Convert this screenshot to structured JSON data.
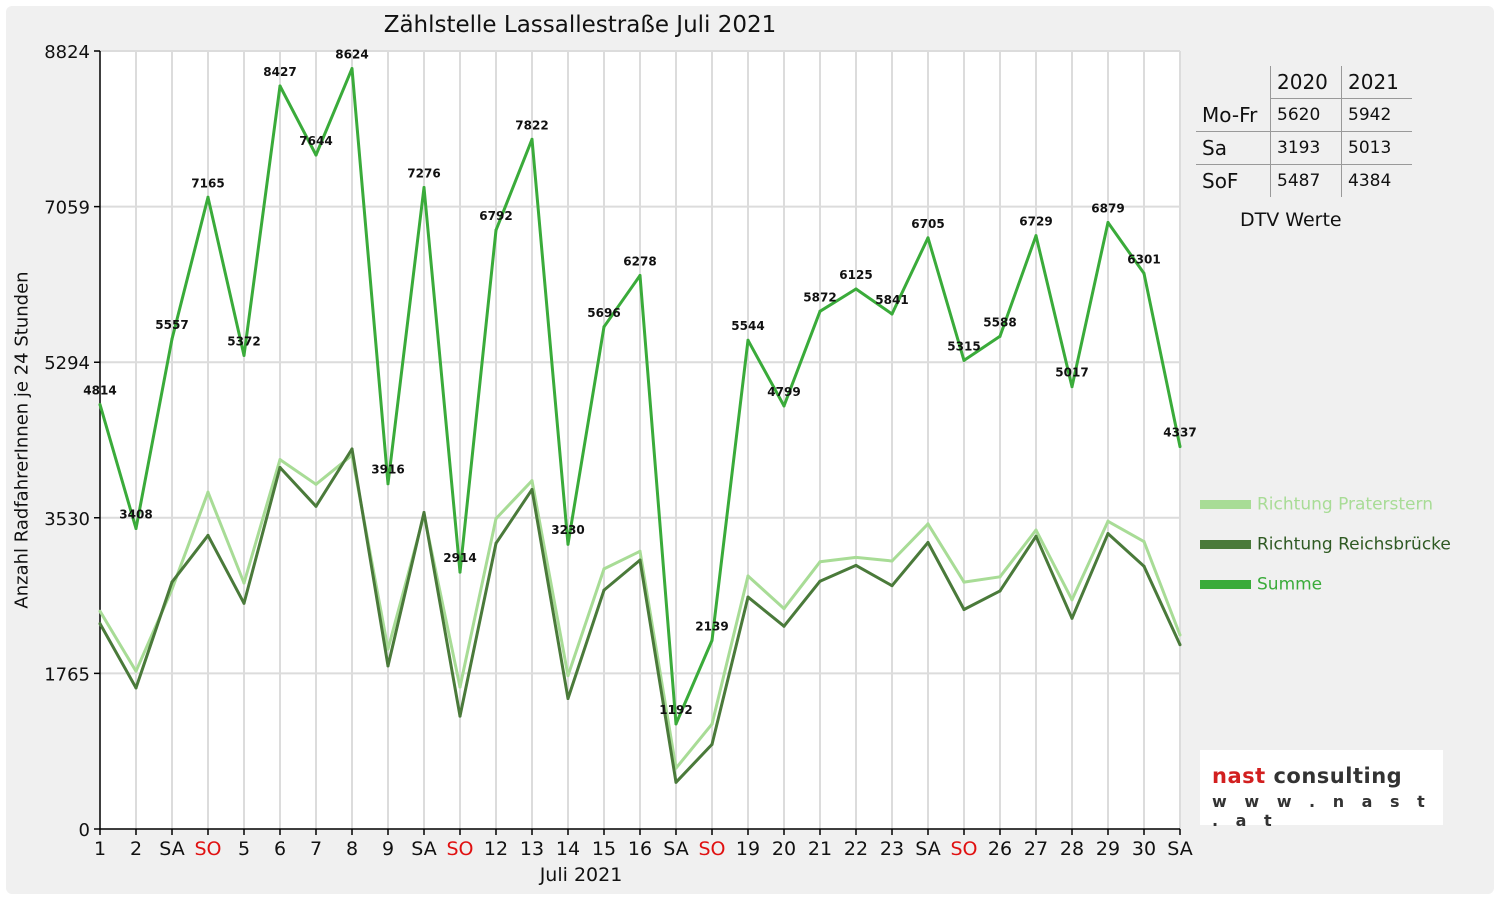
{
  "chart_data": {
    "type": "line",
    "title": "Zählstelle Lassallestraße Juli 2021",
    "xlabel": "Juli 2021",
    "ylabel": "Anzahl RadfahrerInnen je 24 Stunden",
    "ylim": [
      0,
      8824
    ],
    "yticks": [
      "0",
      "1765",
      "3530",
      "5294",
      "7059",
      "8824"
    ],
    "grid": true,
    "categories": [
      "1",
      "2",
      "SA",
      "SO",
      "5",
      "6",
      "7",
      "8",
      "9",
      "SA",
      "SO",
      "12",
      "13",
      "14",
      "15",
      "16",
      "SA",
      "SO",
      "19",
      "20",
      "21",
      "22",
      "23",
      "SA",
      "SO",
      "26",
      "27",
      "28",
      "29",
      "30",
      "SA"
    ],
    "sunday_labels": [
      "SO"
    ],
    "series": [
      {
        "name": "Richtung Praterstern",
        "color": "#a8dc96",
        "values": [
          2470,
          1790,
          2720,
          3820,
          2790,
          4190,
          3910,
          4240,
          2040,
          3560,
          1610,
          3520,
          3950,
          1740,
          2950,
          3150,
          690,
          1190,
          2870,
          2500,
          3030,
          3080,
          3040,
          3460,
          2800,
          2860,
          3390,
          2600,
          3490,
          3260,
          2200
        ]
      },
      {
        "name": "Richtung Reichsbrücke",
        "color": "#4a7a3a",
        "values": [
          2330,
          1600,
          2800,
          3330,
          2560,
          4100,
          3660,
          4310,
          1850,
          3590,
          1280,
          3240,
          3850,
          1480,
          2710,
          3050,
          530,
          960,
          2630,
          2300,
          2810,
          2990,
          2760,
          3250,
          2490,
          2700,
          3320,
          2390,
          3350,
          2980,
          2090
        ]
      },
      {
        "name": "Summe",
        "color": "#3aab3a",
        "values": [
          4814,
          3408,
          5557,
          7165,
          5372,
          8427,
          7644,
          8624,
          3916,
          7276,
          2914,
          6792,
          7822,
          3230,
          5696,
          6278,
          1192,
          2139,
          5544,
          4799,
          5872,
          6125,
          5841,
          6705,
          5315,
          5588,
          6729,
          5017,
          6879,
          6301,
          4337
        ]
      }
    ],
    "legend_position": "right"
  },
  "dtv_table": {
    "headers": [
      "",
      "2020",
      "2021"
    ],
    "rows": [
      {
        "label": "Mo-Fr",
        "v2020": "5620",
        "v2021": "5942"
      },
      {
        "label": "Sa",
        "v2020": "3193",
        "v2021": "5013"
      },
      {
        "label": "SoF",
        "v2020": "5487",
        "v2021": "4384"
      }
    ],
    "caption": "DTV Werte"
  },
  "logo": {
    "part1": "nast",
    "part2": "consulting",
    "url": "w w w . n a s t . a t"
  }
}
